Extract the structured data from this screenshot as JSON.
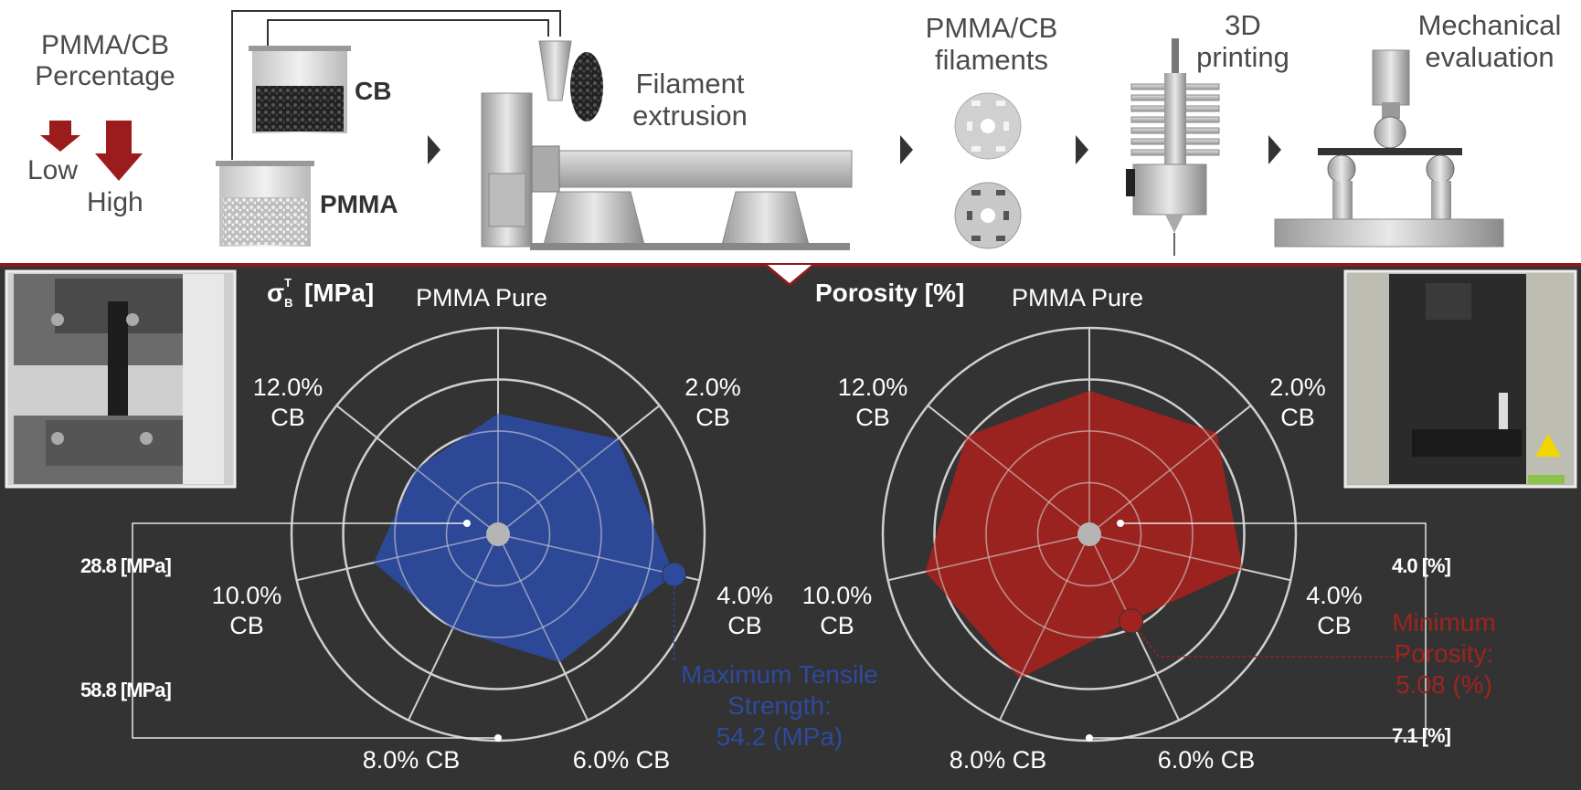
{
  "top": {
    "percentage_title": "PMMA/CB\nPercentage",
    "low_label": "Low",
    "high_label": "High",
    "cb_label": "CB",
    "pmma_label": "PMMA",
    "extrusion_label": "Filament\nextrusion",
    "filaments_label": "PMMA/CB\nfilaments",
    "printing_label": "3D\nprinting",
    "mechanical_label": "Mechanical\nevaluation"
  },
  "axes_labels": [
    "PMMA Pure",
    "2.0%\nCB",
    "4.0%\nCB",
    "6.0% CB",
    "8.0% CB",
    "10.0%\nCB",
    "12.0%\nCB"
  ],
  "colors": {
    "tensile": "#2e4a9e",
    "porosity": "#a0231f",
    "arrow": "#9b1c1c",
    "background": "#333333"
  },
  "chart_data": [
    {
      "type": "radar",
      "title_symbol": "σ",
      "title_sup": "T",
      "title_sub": "B",
      "title_unit": "[MPa]",
      "axes": [
        "PMMA Pure",
        "2.0% CB",
        "4.0% CB",
        "6.0% CB",
        "8.0% CB",
        "10.0% CB",
        "12.0% CB"
      ],
      "values": [
        43.6,
        49.3,
        54.2,
        47.4,
        40.9,
        44.8,
        40.8
      ],
      "range": [
        28.8,
        58.8
      ],
      "range_labels": [
        "28.8 [MPa]",
        "58.8 [MPa]"
      ],
      "highlight": {
        "axis": "4.0% CB",
        "text": "Maximum Tensile\nStrength:\n54.2 (MPa)"
      }
    },
    {
      "type": "radar",
      "title": "Porosity [%]",
      "axes": [
        "PMMA Pure",
        "2.0% CB",
        "4.0% CB",
        "6.0% CB",
        "8.0% CB",
        "10.0% CB",
        "12.0% CB"
      ],
      "values": [
        5.95,
        6.3,
        6.2,
        5.08,
        6.25,
        6.4,
        6.2
      ],
      "range": [
        4.0,
        7.1
      ],
      "range_labels": [
        "4.0 [%]",
        "7.1 [%]"
      ],
      "highlight": {
        "axis": "6.0% CB",
        "text": "Minimum\nPorosity:\n5.08 (%)"
      }
    }
  ]
}
